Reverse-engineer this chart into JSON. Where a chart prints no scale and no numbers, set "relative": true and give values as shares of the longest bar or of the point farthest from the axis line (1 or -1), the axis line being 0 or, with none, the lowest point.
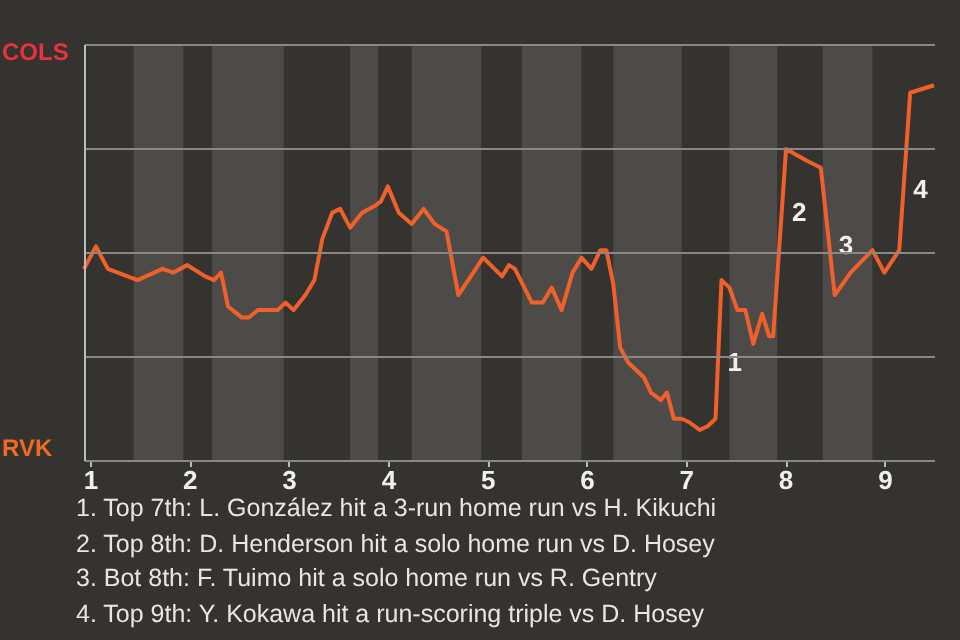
{
  "chart_data": {
    "type": "line",
    "relative": true,
    "x": [
      0.94,
      1.06,
      1.18,
      1.48,
      1.73,
      1.84,
      1.98,
      2.16,
      2.25,
      2.32,
      2.39,
      2.53,
      2.6,
      2.69,
      2.89,
      2.97,
      3.05,
      3.17,
      3.26,
      3.34,
      3.44,
      3.52,
      3.62,
      3.74,
      3.88,
      3.93,
      4.0,
      4.11,
      4.24,
      4.36,
      4.47,
      4.59,
      4.71,
      4.96,
      5.15,
      5.22,
      5.28,
      5.45,
      5.56,
      5.65,
      5.75,
      5.86,
      5.95,
      6.05,
      6.14,
      6.2,
      6.27,
      6.34,
      6.42,
      6.58,
      6.65,
      6.75,
      6.81,
      6.88,
      6.96,
      7.04,
      7.14,
      7.22,
      7.3,
      7.36,
      7.44,
      7.52,
      7.6,
      7.68,
      7.77,
      7.84,
      7.88,
      7.94,
      8.01,
      8.21,
      8.36,
      8.5,
      8.66,
      8.88,
      9.0,
      9.15,
      9.26,
      9.5
    ],
    "series": [
      {
        "color": "#f0602a",
        "values": [
          0.51,
          0.57,
          0.51,
          0.48,
          0.51,
          0.5,
          0.52,
          0.49,
          0.48,
          0.5,
          0.41,
          0.38,
          0.38,
          0.4,
          0.4,
          0.42,
          0.4,
          0.44,
          0.48,
          0.59,
          0.66,
          0.67,
          0.62,
          0.66,
          0.68,
          0.69,
          0.73,
          0.66,
          0.63,
          0.67,
          0.63,
          0.61,
          0.44,
          0.54,
          0.49,
          0.52,
          0.51,
          0.42,
          0.42,
          0.46,
          0.4,
          0.5,
          0.54,
          0.51,
          0.56,
          0.56,
          0.47,
          0.3,
          0.26,
          0.22,
          0.18,
          0.16,
          0.18,
          0.11,
          0.11,
          0.1,
          0.08,
          0.09,
          0.11,
          0.48,
          0.46,
          0.4,
          0.4,
          0.31,
          0.39,
          0.33,
          0.33,
          0.56,
          0.83,
          0.8,
          0.78,
          0.44,
          0.5,
          0.56,
          0.5,
          0.56,
          0.98,
          1
        ]
      }
    ],
    "xlim": [
      0.94,
      9.5
    ],
    "xticks": [
      1,
      2,
      3,
      4,
      5,
      6,
      7,
      8,
      9
    ],
    "grid": "y",
    "bands": [
      {
        "axis": "x",
        "from": 1.44,
        "to": 1.94,
        "color": "#4d4b48"
      },
      {
        "axis": "x",
        "from": 2.23,
        "to": 2.95,
        "color": "#4d4b48"
      },
      {
        "axis": "x",
        "from": 3.62,
        "to": 3.9,
        "color": "#4d4b48"
      },
      {
        "axis": "x",
        "from": 4.24,
        "to": 4.94,
        "color": "#4d4b48"
      },
      {
        "axis": "x",
        "from": 5.35,
        "to": 5.95,
        "color": "#4d4b48"
      },
      {
        "axis": "x",
        "from": 6.27,
        "to": 6.96,
        "color": "#4d4b48"
      },
      {
        "axis": "x",
        "from": 7.44,
        "to": 7.92,
        "color": "#4d4b48"
      },
      {
        "axis": "x",
        "from": 8.38,
        "to": 8.88,
        "color": "#4d4b48"
      }
    ],
    "annotations": [
      "COLS",
      "RVK",
      {
        "text": "1",
        "x": 7.32,
        "y": 0.26
      },
      {
        "text": "2",
        "x": 7.97,
        "y": 0.66
      },
      {
        "text": "3",
        "x": 8.44,
        "y": 0.57
      },
      {
        "text": "4",
        "x": 9.19,
        "y": 0.72
      },
      "1. Top 7th: L. González hit a 3-run home run vs H. Kikuchi",
      "2. Top 8th: D. Henderson hit a solo home run vs D. Hosey",
      "3. Bot 8th: F. Tuimo hit a solo home run vs R. Gentry",
      "4. Top 9th: Y. Kokawa hit a run-scoring triple vs D. Hosey"
    ]
  }
}
